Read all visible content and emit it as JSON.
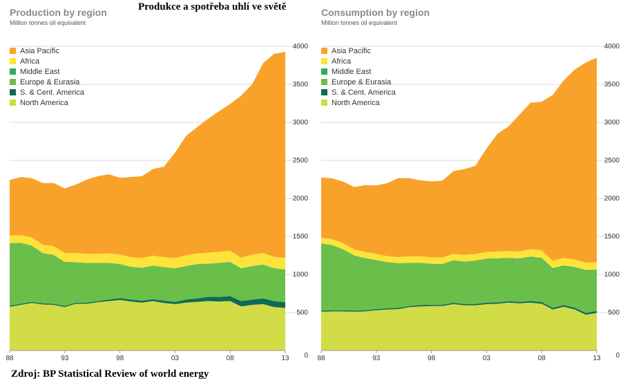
{
  "main_title": "Produkce a spotřeba uhlí ve světě",
  "source_note": "Zdroj: BP Statistical Review of world energy",
  "colors": {
    "North America": "#d2dc46",
    "S. & Cent. America": "#0f6b55",
    "Europe & Eurasia": "#6abf4b",
    "Middle East": "#2eaa5c",
    "Africa": "#fde33a",
    "Asia Pacific": "#f9a22b"
  },
  "chart_data": [
    {
      "type": "area",
      "stacked": true,
      "title": "Production by region",
      "subtitle": "Million tonnes oil equivalent",
      "x": [
        1988,
        1989,
        1990,
        1991,
        1992,
        1993,
        1994,
        1995,
        1996,
        1997,
        1998,
        1999,
        2000,
        2001,
        2002,
        2003,
        2004,
        2005,
        2006,
        2007,
        2008,
        2009,
        2010,
        2011,
        2012,
        2013
      ],
      "x_tick_values": [
        1988,
        1993,
        1998,
        2003,
        2008,
        2013
      ],
      "x_tick_labels": [
        "88",
        "93",
        "98",
        "03",
        "08",
        "13"
      ],
      "ylim": [
        0,
        4000
      ],
      "y_ticks": [
        0,
        500,
        1000,
        1500,
        2000,
        2500,
        3000,
        3500,
        4000
      ],
      "y_axis_side": "right",
      "grid": true,
      "legend_position": "top-left",
      "legend_order": [
        "Asia Pacific",
        "Africa",
        "Middle East",
        "Europe & Eurasia",
        "S. & Cent. America",
        "North America"
      ],
      "series": [
        {
          "name": "North America",
          "values": [
            575,
            600,
            625,
            605,
            600,
            570,
            615,
            615,
            635,
            650,
            665,
            645,
            630,
            650,
            625,
            610,
            630,
            640,
            650,
            645,
            650,
            580,
            600,
            610,
            570,
            560
          ]
        },
        {
          "name": "S. & Cent. America",
          "values": [
            15,
            15,
            15,
            15,
            15,
            15,
            15,
            15,
            15,
            20,
            25,
            25,
            25,
            25,
            30,
            30,
            40,
            45,
            55,
            60,
            65,
            70,
            70,
            75,
            80,
            75
          ]
        },
        {
          "name": "Europe & Eurasia",
          "values": [
            820,
            800,
            740,
            660,
            640,
            580,
            530,
            520,
            500,
            480,
            445,
            430,
            430,
            440,
            440,
            440,
            440,
            450,
            435,
            445,
            450,
            430,
            440,
            445,
            430,
            430
          ]
        },
        {
          "name": "Middle East",
          "values": [
            2,
            2,
            2,
            2,
            2,
            2,
            2,
            2,
            2,
            2,
            2,
            2,
            2,
            2,
            2,
            2,
            2,
            2,
            2,
            2,
            2,
            2,
            2,
            2,
            2,
            2
          ]
        },
        {
          "name": "Africa",
          "values": [
            100,
            100,
            105,
            110,
            115,
            115,
            120,
            120,
            120,
            125,
            125,
            125,
            130,
            130,
            130,
            135,
            140,
            140,
            145,
            145,
            145,
            140,
            150,
            150,
            150,
            150
          ]
        },
        {
          "name": "Asia Pacific",
          "values": [
            730,
            765,
            780,
            810,
            830,
            850,
            900,
            975,
            1020,
            1040,
            1010,
            1055,
            1075,
            1140,
            1190,
            1385,
            1570,
            1660,
            1760,
            1850,
            1930,
            2130,
            2240,
            2500,
            2670,
            2710
          ]
        }
      ]
    },
    {
      "type": "area",
      "stacked": true,
      "title": "Consumption by region",
      "subtitle": "Million tonnes oil equivalent",
      "x": [
        1988,
        1989,
        1990,
        1991,
        1992,
        1993,
        1994,
        1995,
        1996,
        1997,
        1998,
        1999,
        2000,
        2001,
        2002,
        2003,
        2004,
        2005,
        2006,
        2007,
        2008,
        2009,
        2010,
        2011,
        2012,
        2013
      ],
      "x_tick_values": [
        1988,
        1993,
        1998,
        2003,
        2008,
        2013
      ],
      "x_tick_labels": [
        "88",
        "93",
        "98",
        "03",
        "08",
        "13"
      ],
      "ylim": [
        0,
        4000
      ],
      "y_ticks": [
        0,
        500,
        1000,
        1500,
        2000,
        2500,
        3000,
        3500,
        4000
      ],
      "y_axis_side": "right",
      "grid": true,
      "legend_position": "top-left",
      "legend_order": [
        "Asia Pacific",
        "Africa",
        "Middle East",
        "Europe & Eurasia",
        "S. & Cent. America",
        "North America"
      ],
      "series": [
        {
          "name": "North America",
          "values": [
            510,
            515,
            515,
            510,
            515,
            530,
            540,
            545,
            570,
            580,
            585,
            585,
            610,
            595,
            595,
            610,
            615,
            630,
            620,
            630,
            615,
            540,
            575,
            540,
            470,
            495
          ]
        },
        {
          "name": "S. & Cent. America",
          "values": [
            15,
            15,
            15,
            15,
            15,
            15,
            15,
            15,
            15,
            17,
            17,
            17,
            17,
            17,
            18,
            18,
            18,
            18,
            20,
            20,
            22,
            22,
            22,
            24,
            25,
            25
          ]
        },
        {
          "name": "Europe & Eurasia",
          "values": [
            880,
            850,
            795,
            720,
            680,
            640,
            600,
            580,
            560,
            550,
            530,
            530,
            550,
            550,
            560,
            570,
            570,
            560,
            560,
            575,
            570,
            510,
            510,
            520,
            550,
            530
          ]
        },
        {
          "name": "Middle East",
          "values": [
            5,
            5,
            5,
            5,
            5,
            5,
            6,
            6,
            6,
            7,
            7,
            7,
            7,
            7,
            8,
            8,
            8,
            8,
            9,
            9,
            10,
            10,
            10,
            11,
            11,
            11
          ]
        },
        {
          "name": "Africa",
          "values": [
            75,
            80,
            80,
            80,
            80,
            80,
            80,
            82,
            85,
            85,
            85,
            85,
            85,
            87,
            88,
            90,
            90,
            92,
            95,
            100,
            100,
            100,
            100,
            100,
            100,
            100
          ]
        },
        {
          "name": "Asia Pacific",
          "values": [
            790,
            800,
            810,
            820,
            880,
            900,
            960,
            1040,
            1030,
            1000,
            1000,
            1010,
            1090,
            1130,
            1160,
            1360,
            1550,
            1640,
            1800,
            1925,
            1955,
            2180,
            2335,
            2500,
            2630,
            2690
          ]
        }
      ]
    }
  ]
}
